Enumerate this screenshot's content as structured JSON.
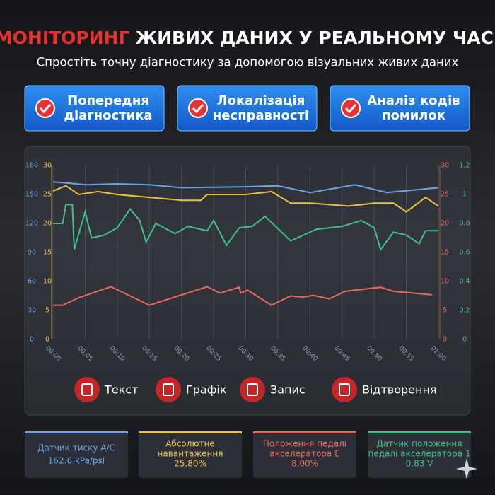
{
  "header": {
    "title_accent": "МОНІТОРИНГ",
    "title_rest": "ЖИВИХ ДАНИХ У РЕАЛЬНОМУ ЧАСІ",
    "subtitle": "Спростіть точну діагностику за допомогою візуальних живих даних"
  },
  "features": [
    [
      "Попередня",
      "діагностика"
    ],
    [
      "Локалізація",
      "несправності"
    ],
    [
      "Аналіз кодів",
      "помилок"
    ]
  ],
  "chart_data": {
    "type": "line",
    "xlim": [
      0,
      60
    ],
    "xticks": [
      {
        "value": 0,
        "label": "00:00"
      },
      {
        "value": 5,
        "label": "00:05"
      },
      {
        "value": 10,
        "label": "00:10"
      },
      {
        "value": 15,
        "label": "00:15"
      },
      {
        "value": 20,
        "label": "00:20"
      },
      {
        "value": 25,
        "label": "00:25"
      },
      {
        "value": 30,
        "label": "00:30"
      },
      {
        "value": 35,
        "label": "00:35"
      },
      {
        "value": 40,
        "label": "00:40"
      },
      {
        "value": 45,
        "label": "00:45"
      },
      {
        "value": 50,
        "label": "00:50"
      },
      {
        "value": 55,
        "label": "00:55"
      },
      {
        "value": 60,
        "label": "01:00"
      }
    ],
    "ylim": [
      0,
      180
    ],
    "yticks": [
      0,
      30,
      60,
      90,
      120,
      150,
      180
    ],
    "y2lim": [
      0,
      30
    ],
    "y2ticks": [
      0,
      5,
      10,
      15,
      20,
      25,
      30
    ],
    "y3lim": [
      0,
      30
    ],
    "y3ticks": [
      0,
      5,
      10,
      15,
      20,
      25,
      30
    ],
    "y4lim": [
      0,
      1.2
    ],
    "y4ticks": [
      0,
      0.2,
      0.4,
      0.6,
      0.8,
      1,
      1.2
    ],
    "grid": true,
    "series": [
      {
        "color": "#6fa3e8",
        "axis": "y",
        "x": [
          0,
          2,
          5,
          10,
          15,
          20,
          30,
          35,
          40,
          47,
          52,
          60
        ],
        "values": [
          163,
          162,
          160,
          161,
          160,
          157,
          158,
          159,
          152,
          160,
          152,
          157
        ]
      },
      {
        "color": "#e8c344",
        "axis": "y2",
        "x": [
          0,
          2,
          4,
          7,
          10,
          15,
          20,
          23,
          24,
          30,
          34,
          37,
          40,
          46,
          50,
          53,
          55,
          58,
          60
        ],
        "values": [
          25.6,
          26.5,
          25,
          25.5,
          25,
          24.5,
          24,
          24,
          25,
          25,
          25.5,
          23.5,
          23.5,
          23,
          23.5,
          23.5,
          22,
          24.5,
          23
        ]
      },
      {
        "color": "#e86a5e",
        "axis": "y3",
        "x": [
          0,
          1.5,
          4,
          9,
          15,
          24,
          26,
          29,
          29.2,
          30.3,
          34,
          37,
          39,
          40.5,
          43,
          45.5,
          51,
          53,
          59
        ],
        "values": [
          5.9,
          5.9,
          7.2,
          9.1,
          5.9,
          9.1,
          8,
          9,
          8,
          8.5,
          5.9,
          7.5,
          7.3,
          7.6,
          7,
          8.3,
          9,
          8.3,
          7.7
        ]
      },
      {
        "color": "#3fbf8a",
        "axis": "y4",
        "x": [
          0,
          1.5,
          2,
          3,
          3.3,
          5,
          6,
          8,
          10,
          12,
          13.5,
          14.5,
          16,
          19,
          21,
          24,
          25,
          27,
          29,
          31,
          33,
          37,
          41,
          45,
          48,
          50,
          51,
          53,
          55,
          57,
          58,
          60
        ],
        "values": [
          0.8,
          0.8,
          0.93,
          0.93,
          0.62,
          0.88,
          0.7,
          0.72,
          0.77,
          0.9,
          0.82,
          0.67,
          0.8,
          0.73,
          0.78,
          0.75,
          0.82,
          0.65,
          0.77,
          0.78,
          0.85,
          0.68,
          0.76,
          0.78,
          0.82,
          0.77,
          0.62,
          0.74,
          0.72,
          0.66,
          0.75,
          0.75
        ]
      }
    ]
  },
  "controls": [
    "Текст",
    "Графік",
    "Запис",
    "Відтворення"
  ],
  "sensors": [
    {
      "label": [
        "Датчик тиску А/С"
      ],
      "value": "162.6 kPa/psi"
    },
    {
      "label": [
        "Абсолютне",
        "навантаження"
      ],
      "value": "25.80%"
    },
    {
      "label": [
        "Положення педалі",
        "акселератора Е"
      ],
      "value": "8.00%"
    },
    {
      "label": [
        "Датчик положення",
        "педалі акселератора 1"
      ],
      "value": "0.83 V"
    }
  ]
}
